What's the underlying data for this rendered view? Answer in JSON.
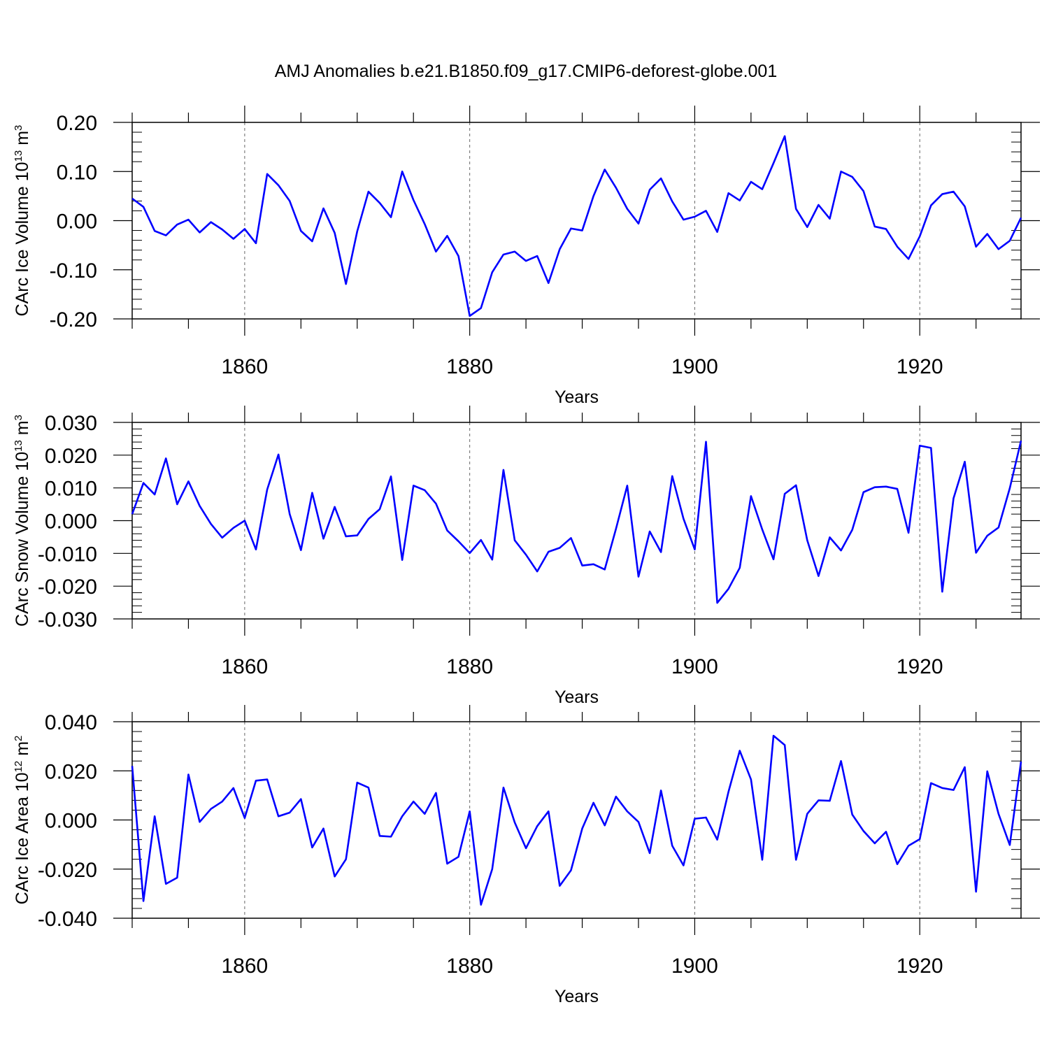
{
  "chart_data": [
    {
      "type": "line",
      "title": "AMJ Anomalies b.e21.B1850.f09_g17.CMIP6-deforest-globe.001",
      "ylabel": "CArc Ice Volume",
      "ylabel_units": {
        "base": "10",
        "exp": "13",
        "unit": "m",
        "unit_exp": "3"
      },
      "xlabel": "Years",
      "xlim": [
        1850,
        1929
      ],
      "ylim": [
        -0.2,
        0.2
      ],
      "yticks": [
        -0.2,
        -0.1,
        0.0,
        0.1,
        0.2
      ],
      "ytick_labels": [
        "-0.20",
        "-0.10",
        "0.00",
        "0.10",
        "0.20"
      ],
      "xticks": [
        1860,
        1880,
        1900,
        1920
      ],
      "xtick_labels": [
        "1860",
        "1880",
        "1900",
        "1920"
      ],
      "grid": "vertical dashed at major x ticks",
      "color": "#0000ff",
      "series": [
        {
          "name": "CArc Ice Volume",
          "x_start": 1850,
          "values": [
            0.045,
            0.028,
            -0.021,
            -0.03,
            -0.008,
            0.002,
            -0.024,
            -0.003,
            -0.018,
            -0.037,
            -0.017,
            -0.046,
            0.095,
            0.072,
            0.04,
            -0.021,
            -0.042,
            0.025,
            -0.025,
            -0.129,
            -0.022,
            0.059,
            0.036,
            0.007,
            0.1,
            0.042,
            -0.007,
            -0.063,
            -0.031,
            -0.072,
            -0.194,
            -0.178,
            -0.105,
            -0.069,
            -0.063,
            -0.082,
            -0.072,
            -0.127,
            -0.058,
            -0.016,
            -0.02,
            0.05,
            0.104,
            0.067,
            0.024,
            -0.006,
            0.063,
            0.086,
            0.039,
            0.002,
            0.008,
            0.02,
            -0.023,
            0.056,
            0.041,
            0.079,
            0.064,
            0.117,
            0.172,
            0.024,
            -0.013,
            0.032,
            0.004,
            0.1,
            0.089,
            0.06,
            -0.012,
            -0.017,
            -0.053,
            -0.078,
            -0.032,
            0.031,
            0.054,
            0.059,
            0.029,
            -0.053,
            -0.027,
            -0.058,
            -0.041,
            0.006
          ]
        }
      ]
    },
    {
      "type": "line",
      "ylabel": "CArc Snow Volume",
      "ylabel_units": {
        "base": "10",
        "exp": "13",
        "unit": "m",
        "unit_exp": "3"
      },
      "xlabel": "Years",
      "xlim": [
        1850,
        1929
      ],
      "ylim": [
        -0.03,
        0.03
      ],
      "yticks": [
        -0.03,
        -0.02,
        -0.01,
        0.0,
        0.01,
        0.02,
        0.03
      ],
      "ytick_labels": [
        "-0.030",
        "-0.020",
        "-0.010",
        "0.000",
        "0.010",
        "0.020",
        "0.030"
      ],
      "xticks": [
        1860,
        1880,
        1900,
        1920
      ],
      "xtick_labels": [
        "1860",
        "1880",
        "1900",
        "1920"
      ],
      "grid": "vertical dashed at major x ticks",
      "color": "#0000ff",
      "series": [
        {
          "name": "CArc Snow Volume",
          "x_start": 1850,
          "values": [
            0.002,
            0.0115,
            0.008,
            0.019,
            0.005,
            0.012,
            0.0045,
            -0.001,
            -0.0052,
            -0.0022,
            0.0,
            -0.0088,
            0.0095,
            0.0202,
            0.002,
            -0.009,
            0.0085,
            -0.0055,
            0.0042,
            -0.0048,
            -0.0045,
            0.0005,
            0.0035,
            0.0135,
            -0.012,
            0.0107,
            0.0093,
            0.0052,
            -0.003,
            -0.0063,
            -0.0099,
            -0.0059,
            -0.0119,
            0.0155,
            -0.006,
            -0.0104,
            -0.0155,
            -0.0095,
            -0.0083,
            -0.0053,
            -0.0137,
            -0.0133,
            -0.0149,
            -0.0025,
            0.0107,
            -0.0171,
            -0.0033,
            -0.0096,
            0.0136,
            0.0006,
            -0.0088,
            0.0241,
            -0.0251,
            -0.0208,
            -0.0144,
            0.0075,
            -0.0027,
            -0.0118,
            0.0082,
            0.0108,
            -0.006,
            -0.0169,
            -0.0051,
            -0.0091,
            -0.0028,
            0.0087,
            0.0102,
            0.0104,
            0.0097,
            -0.0037,
            0.0229,
            0.0222,
            -0.0217,
            0.0068,
            0.018,
            -0.0098,
            -0.0046,
            -0.0021,
            0.0099,
            0.0244
          ]
        }
      ]
    },
    {
      "type": "line",
      "ylabel": "CArc Ice Area",
      "ylabel_units": {
        "base": "10",
        "exp": "12",
        "unit": "m",
        "unit_exp": "2"
      },
      "xlabel": "Years",
      "xlim": [
        1850,
        1929
      ],
      "ylim": [
        -0.04,
        0.04
      ],
      "yticks": [
        -0.04,
        -0.02,
        0.0,
        0.02,
        0.04
      ],
      "ytick_labels": [
        "-0.040",
        "-0.020",
        "0.000",
        "0.020",
        "0.040"
      ],
      "xticks": [
        1860,
        1880,
        1900,
        1920
      ],
      "xtick_labels": [
        "1860",
        "1880",
        "1900",
        "1920"
      ],
      "grid": "vertical dashed at major x ticks",
      "color": "#0000ff",
      "series": [
        {
          "name": "CArc Ice Area",
          "x_start": 1850,
          "values": [
            0.022,
            -0.033,
            0.0015,
            -0.026,
            -0.0235,
            0.0185,
            -0.0008,
            0.0045,
            0.0075,
            0.013,
            0.0008,
            0.016,
            0.0165,
            0.0015,
            0.003,
            0.0085,
            -0.0112,
            -0.0035,
            -0.023,
            -0.016,
            0.0152,
            0.0132,
            -0.0065,
            -0.0068,
            0.0015,
            0.0075,
            0.0025,
            0.011,
            -0.0178,
            -0.015,
            0.0035,
            -0.0345,
            -0.02,
            0.0132,
            -0.001,
            -0.0115,
            -0.0025,
            0.0035,
            -0.0268,
            -0.0205,
            -0.0035,
            0.007,
            -0.0022,
            0.0095,
            0.0035,
            -0.0008,
            -0.0135,
            0.012,
            -0.0105,
            -0.0185,
            0.0005,
            0.001,
            -0.008,
            0.0115,
            0.0282,
            0.0165,
            -0.0162,
            0.0343,
            0.0305,
            -0.0162,
            0.0025,
            0.008,
            0.0078,
            0.024,
            0.0022,
            -0.0045,
            -0.0095,
            -0.0048,
            -0.018,
            -0.0105,
            -0.0078,
            0.015,
            0.013,
            0.0122,
            0.0215,
            -0.0292,
            0.0198,
            0.0025,
            -0.0102,
            0.0238
          ]
        }
      ]
    }
  ]
}
